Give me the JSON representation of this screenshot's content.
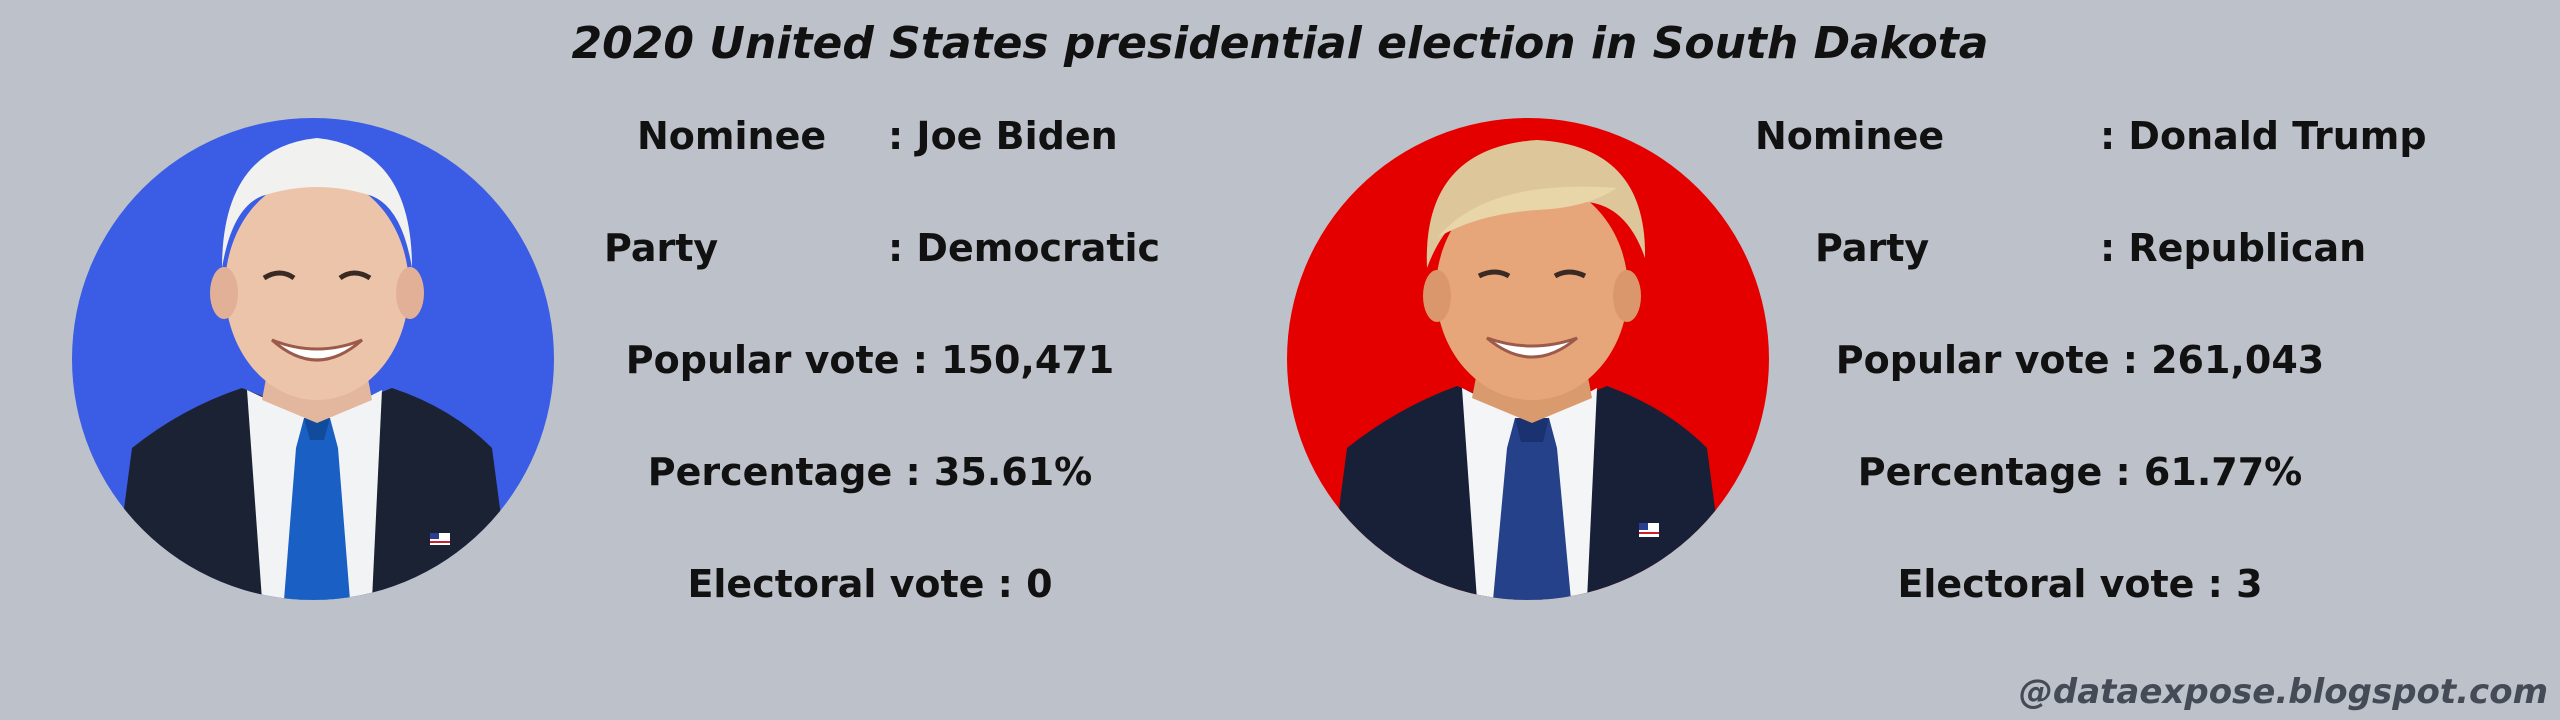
{
  "title": "2020 United States presidential election in South Dakota",
  "candidates": [
    {
      "nominee_label": "Nominee",
      "nominee_value": ": Joe Biden",
      "party_label": "Party",
      "party_value": ": Democratic",
      "popular_vote": "Popular vote : 150,471",
      "percentage": "Percentage : 35.61%",
      "electoral_vote": "Electoral vote : 0",
      "party_color": "#3b5ce4"
    },
    {
      "nominee_label": "Nominee",
      "nominee_value": ": Donald Trump",
      "party_label": "Party",
      "party_value": ": Republican",
      "popular_vote": "Popular vote : 261,043",
      "percentage": "Percentage : 61.77%",
      "electoral_vote": "Electoral vote : 3",
      "party_color": "#e50000"
    }
  ],
  "watermark": "@dataexpose.blogspot.com"
}
